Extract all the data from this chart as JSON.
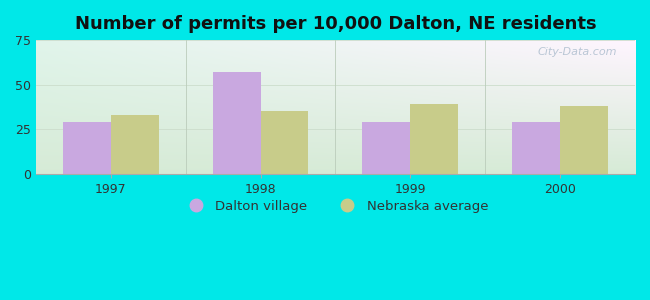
{
  "title": "Number of permits per 10,000 Dalton, NE residents",
  "years": [
    1997,
    1998,
    1999,
    2000
  ],
  "dalton_values": [
    29,
    57,
    29,
    29
  ],
  "nebraska_values": [
    33,
    35,
    39,
    38
  ],
  "dalton_color": "#c9a8e0",
  "nebraska_color": "#c8cc8a",
  "background_color": "#00e8e8",
  "plot_bg_top_left": "#d0f0e8",
  "plot_bg_top_right": "#f0f8f0",
  "plot_bg_bottom": "#d8edd8",
  "ylim": [
    0,
    75
  ],
  "yticks": [
    0,
    25,
    50,
    75
  ],
  "bar_width": 0.32,
  "title_fontsize": 13,
  "legend_labels": [
    "Dalton village",
    "Nebraska average"
  ],
  "watermark": "City-Data.com"
}
